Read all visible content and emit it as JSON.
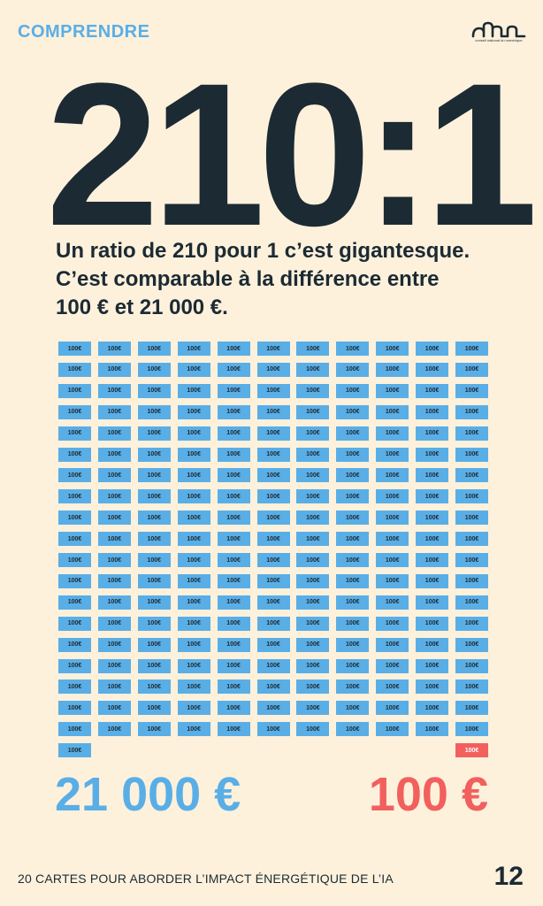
{
  "header": {
    "section_label": "COMPRENDRE",
    "logo_text": "conseil national du numérique",
    "logo_icon": "cnnum-logo"
  },
  "headline": {
    "ratio": "210:1",
    "lines": [
      "Un ratio de 210 pour 1 c’est gigantesque.",
      "C’est comparable à la différence entre",
      "100 € et 21 000 €."
    ]
  },
  "bills": {
    "label": "100€",
    "blue_count": 210,
    "red_count": 1,
    "blue_color": "#5aaee6",
    "red_color": "#f2605e"
  },
  "totals": {
    "left": "21 000 €",
    "right": "100 €"
  },
  "footer": {
    "text": "20 CARTES POUR ABORDER L’IMPACT ÉNERGÉTIQUE DE L’IA",
    "page_number": "12"
  }
}
